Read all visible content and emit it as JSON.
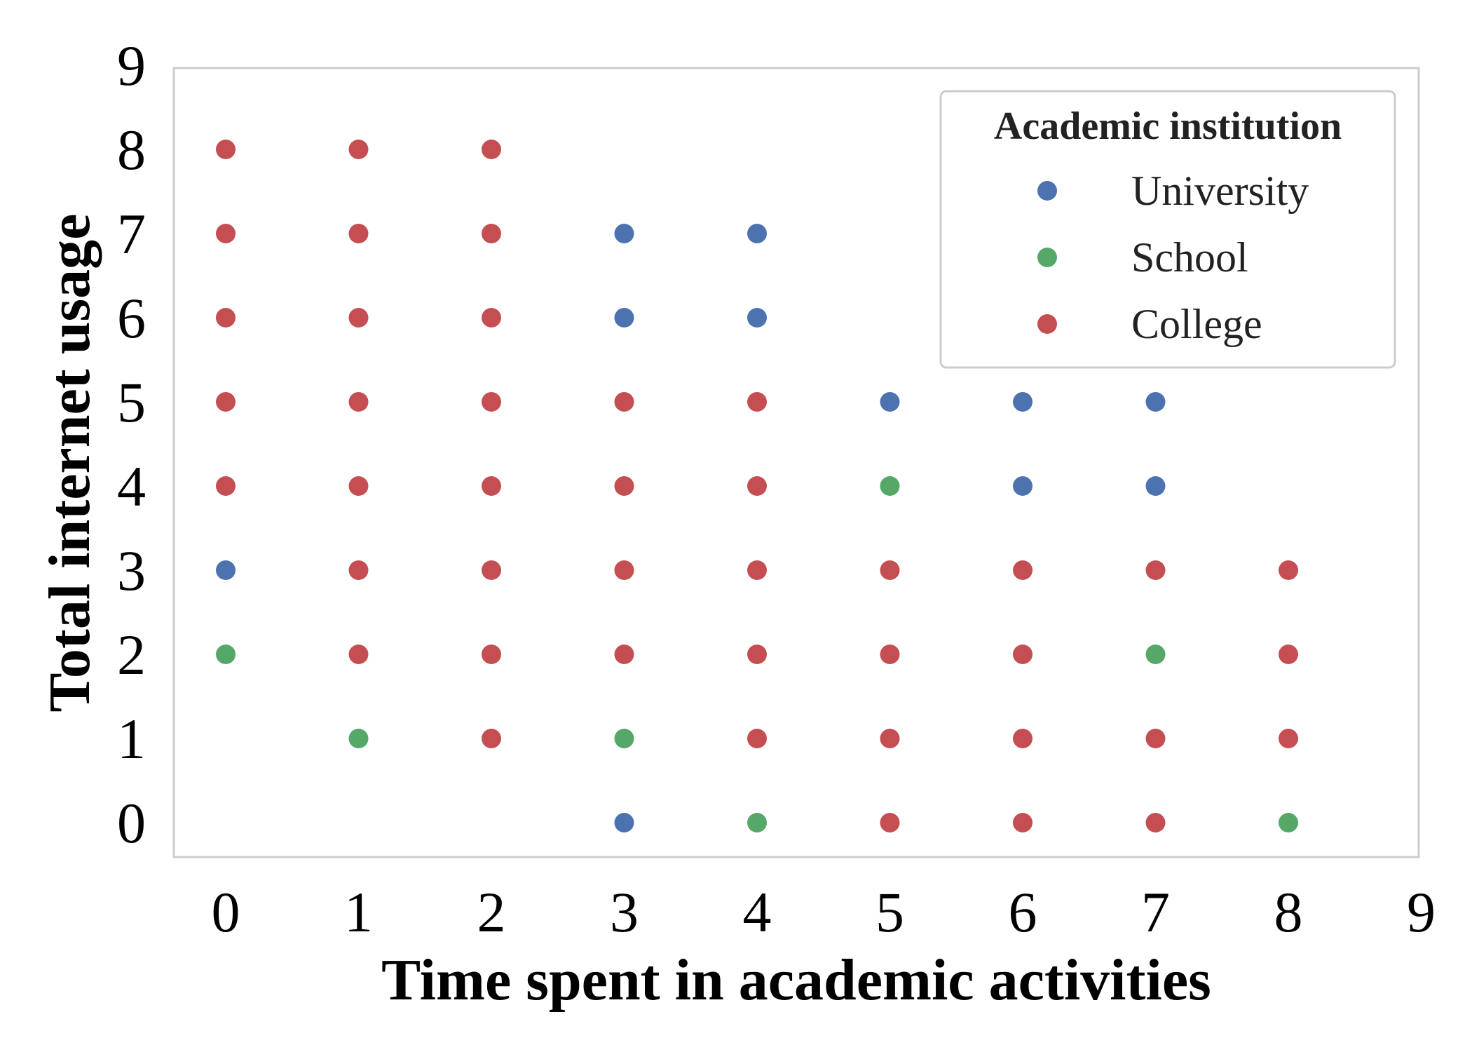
{
  "chart_data": {
    "type": "scatter",
    "xlabel": "Time spent in academic activities",
    "ylabel": "Total internet usage",
    "xlim": [
      -0.4,
      9
    ],
    "ylim": [
      -0.4,
      9
    ],
    "xticks": [
      0,
      1,
      2,
      3,
      4,
      5,
      6,
      7,
      8,
      9
    ],
    "yticks": [
      0,
      1,
      2,
      3,
      4,
      5,
      6,
      7,
      8,
      9
    ],
    "grid": false,
    "legend": {
      "title": "Academic institution",
      "position": "top-right"
    },
    "series": [
      {
        "name": "University",
        "color": "#4c72b0",
        "points": [
          [
            0,
            3
          ],
          [
            3,
            7
          ],
          [
            3,
            6
          ],
          [
            3,
            0
          ],
          [
            4,
            7
          ],
          [
            4,
            6
          ],
          [
            5,
            5
          ],
          [
            6,
            5
          ],
          [
            6,
            4
          ],
          [
            7,
            5
          ],
          [
            7,
            4
          ]
        ]
      },
      {
        "name": "School",
        "color": "#55a868",
        "points": [
          [
            0,
            2
          ],
          [
            1,
            1
          ],
          [
            3,
            1
          ],
          [
            4,
            0
          ],
          [
            5,
            4
          ],
          [
            7,
            2
          ],
          [
            8,
            0
          ]
        ]
      },
      {
        "name": "College",
        "color": "#c44e52",
        "points": [
          [
            0,
            8
          ],
          [
            0,
            7
          ],
          [
            0,
            6
          ],
          [
            0,
            5
          ],
          [
            0,
            4
          ],
          [
            1,
            8
          ],
          [
            1,
            7
          ],
          [
            1,
            6
          ],
          [
            1,
            5
          ],
          [
            1,
            4
          ],
          [
            1,
            3
          ],
          [
            1,
            2
          ],
          [
            2,
            8
          ],
          [
            2,
            7
          ],
          [
            2,
            6
          ],
          [
            2,
            5
          ],
          [
            2,
            4
          ],
          [
            2,
            3
          ],
          [
            2,
            2
          ],
          [
            2,
            1
          ],
          [
            3,
            5
          ],
          [
            3,
            4
          ],
          [
            3,
            3
          ],
          [
            3,
            2
          ],
          [
            4,
            5
          ],
          [
            4,
            4
          ],
          [
            4,
            3
          ],
          [
            4,
            2
          ],
          [
            4,
            1
          ],
          [
            5,
            3
          ],
          [
            5,
            2
          ],
          [
            5,
            1
          ],
          [
            5,
            0
          ],
          [
            6,
            3
          ],
          [
            6,
            2
          ],
          [
            6,
            1
          ],
          [
            6,
            0
          ],
          [
            7,
            3
          ],
          [
            7,
            1
          ],
          [
            7,
            0
          ],
          [
            8,
            3
          ],
          [
            8,
            2
          ],
          [
            8,
            1
          ]
        ]
      }
    ]
  }
}
